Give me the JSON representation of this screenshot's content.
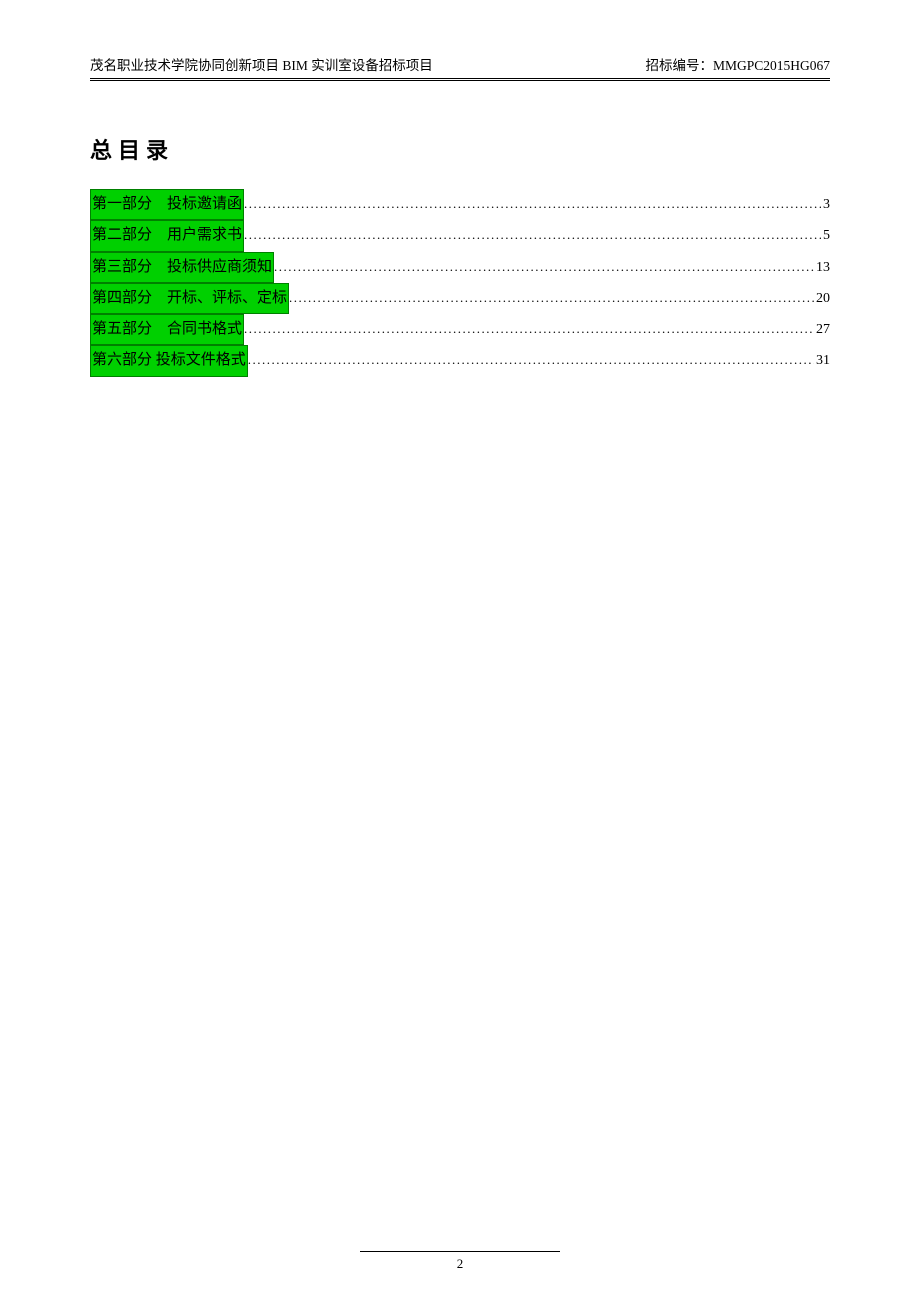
{
  "header": {
    "left": "茂名职业技术学院协同创新项目 BIM 实训室设备招标项目",
    "right_label": "招标编号：",
    "right_code": "MMGPC2015HG067"
  },
  "title": "总目录",
  "toc": {
    "highlight_bg": "#00d000",
    "highlight_border": "#008000",
    "text_color": "#000000",
    "entries": [
      {
        "part": "第一部分",
        "name": "投标邀请函",
        "page": "3"
      },
      {
        "part": "第二部分",
        "name": "用户需求书",
        "page": "5"
      },
      {
        "part": "第三部分",
        "name": "投标供应商须知",
        "page": "13"
      },
      {
        "part": "第四部分",
        "name": "开标、评标、定标",
        "page": "20"
      },
      {
        "part": "第五部分",
        "name": "合同书格式",
        "page": "27"
      },
      {
        "part": "第六部分",
        "name": "投标文件格式",
        "page": "31"
      }
    ]
  },
  "footer": {
    "page_number": "2"
  }
}
